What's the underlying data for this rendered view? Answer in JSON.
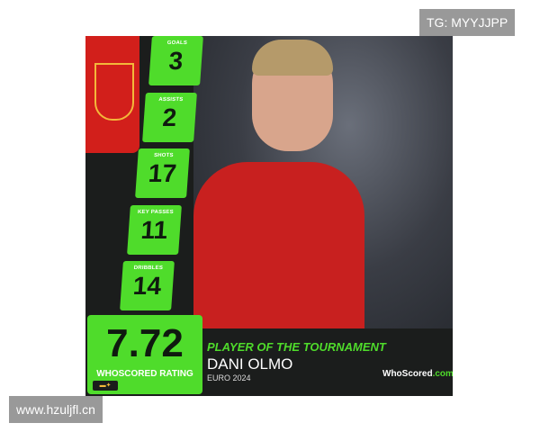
{
  "stats": [
    {
      "label": "GOALS",
      "value": "3"
    },
    {
      "label": "ASSISTS",
      "value": "2"
    },
    {
      "label": "SHOTS",
      "value": "17"
    },
    {
      "label": "KEY PASSES",
      "value": "11"
    },
    {
      "label": "DRIBBLES",
      "value": "14"
    }
  ],
  "rating": {
    "value": "7.72",
    "label": "WHOSCORED RATING"
  },
  "award": "PLAYER OF THE TOURNAMENT",
  "player": "DANI OLMO",
  "event": "EURO 2024",
  "logo": {
    "main": "WhoScored",
    "suffix": ".com"
  },
  "watermarks": {
    "top": "TG: MYYJJPP",
    "bottom": "www.hzuljfl.cn"
  },
  "colors": {
    "accent": "#4fdc2b",
    "background": "#1b1d1c",
    "shirt": "#c8201f"
  }
}
